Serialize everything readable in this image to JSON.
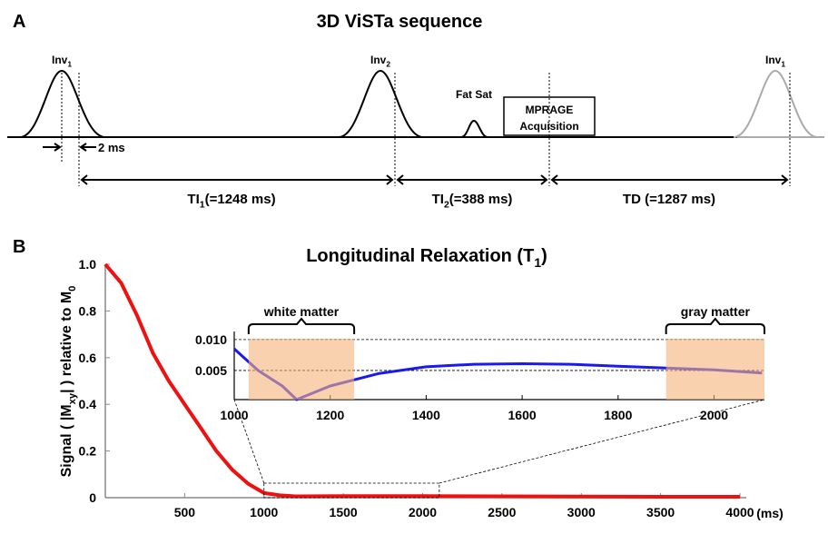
{
  "panel_a": {
    "label": "A",
    "title": "3D ViSTa sequence",
    "pulses": [
      {
        "label": [
          "Inv",
          "1"
        ]
      },
      {
        "label": [
          "Inv",
          "2"
        ]
      },
      {
        "label": [
          "Fat Sat"
        ]
      },
      {
        "label": [
          "Inv",
          "1"
        ]
      }
    ],
    "acquisition": [
      "MPRAGE",
      "Acquisition"
    ],
    "gap": "2 ms",
    "intervals": [
      [
        "TI",
        "1",
        "(=1248 ms)"
      ],
      [
        "TI",
        "2",
        "(=388 ms)"
      ],
      [
        "TD (=1287 ms)"
      ]
    ]
  },
  "panel_b": {
    "label": "B"
  },
  "chart_data": [
    {
      "type": "line",
      "title": [
        "Longitudinal Relaxation (T",
        "1",
        ")"
      ],
      "ylabel": [
        "Signal ( |M",
        "xy",
        "| ) relative to M",
        "0"
      ],
      "x_unit": "(ms)",
      "x": [
        0,
        100,
        200,
        300,
        400,
        500,
        600,
        700,
        800,
        900,
        1000,
        1100,
        1200,
        1500,
        2000,
        2500,
        3000,
        3500,
        4000
      ],
      "values": [
        1.0,
        0.92,
        0.78,
        0.62,
        0.5,
        0.4,
        0.3,
        0.2,
        0.12,
        0.06,
        0.02,
        0.01,
        0.006,
        0.007,
        0.007,
        0.006,
        0.005,
        0.004,
        0.004
      ],
      "color": "#ee1111",
      "xlim": [
        0,
        4040
      ],
      "ylim": [
        0,
        1
      ],
      "xticks": [
        500,
        1000,
        1500,
        2000,
        2500,
        3000,
        3500,
        4000
      ],
      "yticks": [
        0,
        0.2,
        0.4,
        0.6,
        0.8,
        {
          "value": 1,
          "label": "1.0"
        }
      ]
    },
    {
      "type": "line",
      "x": [
        1000,
        1050,
        1100,
        1130,
        1200,
        1300,
        1400,
        1500,
        1600,
        1700,
        1800,
        1900,
        2000,
        2100
      ],
      "values": [
        0.0085,
        0.005,
        0.0025,
        0.0003,
        0.0025,
        0.0045,
        0.0056,
        0.006,
        0.0061,
        0.006,
        0.0057,
        0.0054,
        0.0051,
        0.0046
      ],
      "color": "#1a1aee",
      "xlim": [
        1000,
        2105
      ],
      "ylim": [
        0.0003,
        0.0113
      ],
      "xticks": [
        1000,
        1200,
        1400,
        1600,
        1800,
        2000
      ],
      "yticks": [
        {
          "value": 0.005,
          "label": "0.005"
        },
        {
          "value": 0.01,
          "label": "0.010"
        }
      ],
      "regions": [
        {
          "label": "white matter",
          "x": [
            1030,
            1250
          ]
        },
        {
          "label": "gray matter",
          "x": [
            1900,
            2105
          ]
        }
      ],
      "region_color": "#f6b27a"
    }
  ]
}
